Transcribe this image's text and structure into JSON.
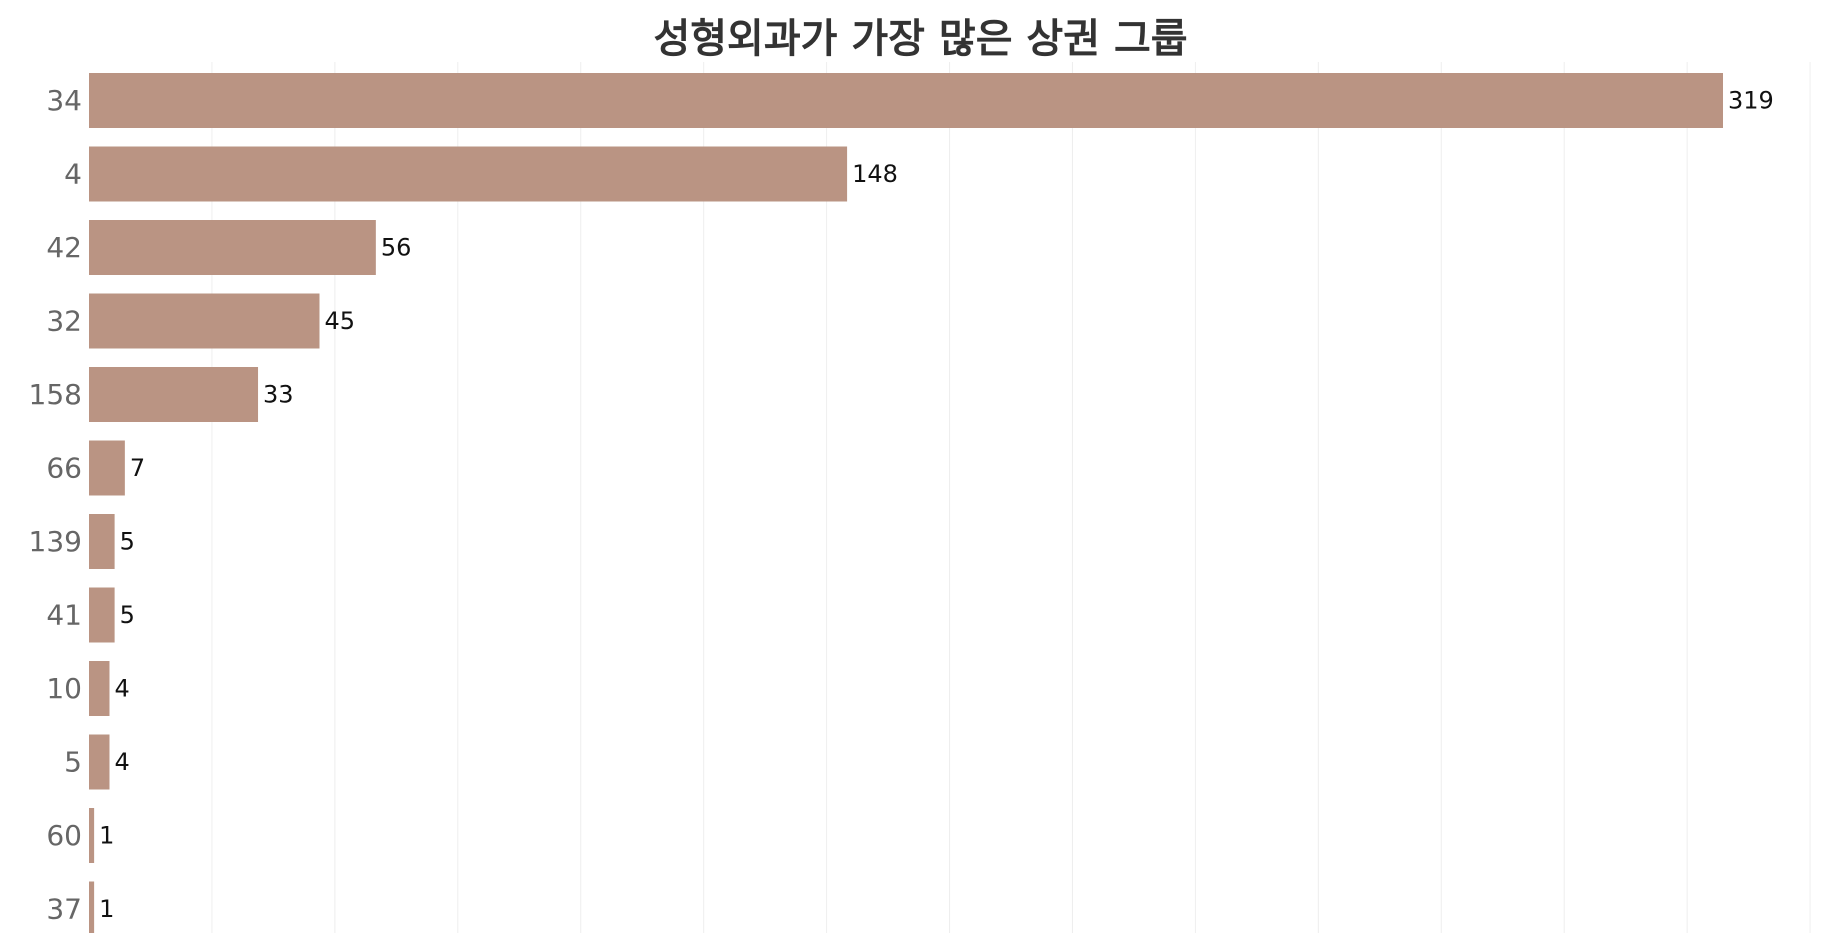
{
  "chart_data": {
    "type": "bar",
    "orientation": "horizontal",
    "title": "성형외과가 가장 많은 상권 그룹",
    "xlabel": "",
    "ylabel": "",
    "categories": [
      "34",
      "4",
      "42",
      "32",
      "158",
      "66",
      "139",
      "41",
      "10",
      "5",
      "60",
      "37"
    ],
    "values": [
      319,
      148,
      56,
      45,
      33,
      7,
      5,
      5,
      4,
      4,
      1,
      1
    ],
    "xlim": [
      0,
      340
    ],
    "grid": "vertical",
    "legend": "none",
    "bar_color": "#BA9483"
  }
}
